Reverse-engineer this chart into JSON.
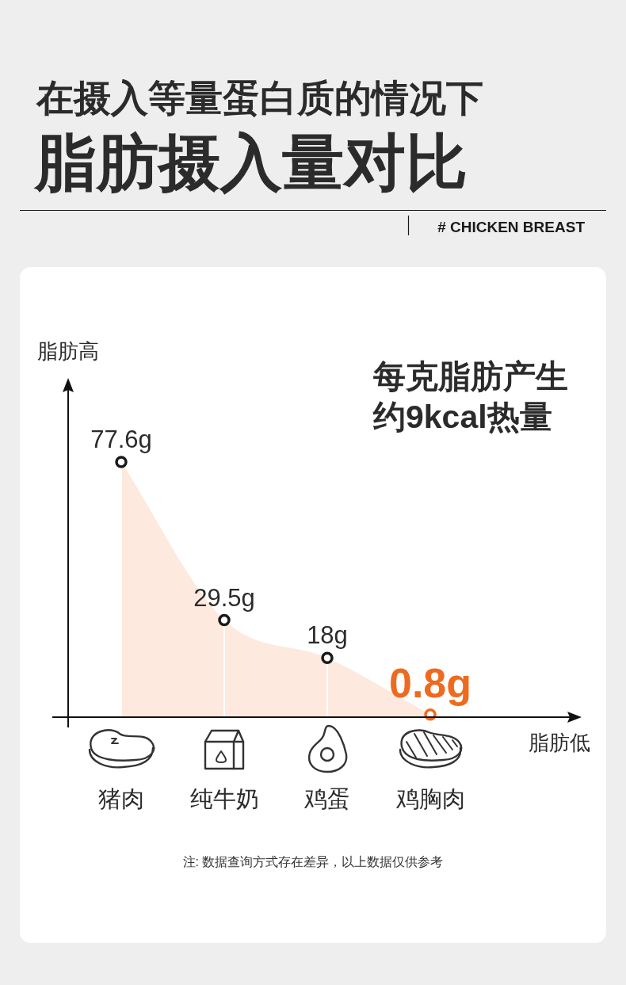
{
  "chart_data": {
    "type": "area",
    "title": "脂肪摄入量对比",
    "subtitle": "在摄入等量蛋白质的情况下",
    "xlabel": "脂肪低",
    "ylabel": "脂肪高",
    "annotations": [
      "# CHICKEN BREAST",
      "每克脂肪产生",
      "约9kcal热量",
      "注: 数据查询方式存在差异，以上数据仅供参考"
    ],
    "categories": [
      "猪肉",
      "纯牛奶",
      "鸡蛋",
      "鸡胸肉"
    ],
    "series": [
      {
        "color": "#fde9de",
        "values": [
          77.6,
          29.5,
          18,
          0.8
        ]
      },
      {
        "type": "lollipop",
        "marker": "circle",
        "color": "#1a1a1a",
        "colors": [
          "#1a1a1a",
          "#1a1a1a",
          "#1a1a1a",
          "#ee6a1f"
        ],
        "values": [
          77.6,
          29.5,
          18,
          0.8
        ],
        "value_labels": [
          "77.6g",
          "29.5g",
          "18g",
          "0.8g"
        ]
      }
    ],
    "ylim": [
      0,
      100
    ],
    "tick_labels": "x"
  }
}
